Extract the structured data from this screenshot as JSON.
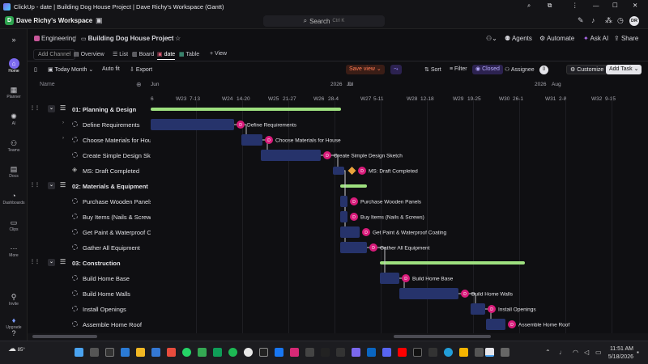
{
  "window": {
    "title": "ClickUp - date | Building Dog House Project | Dave Richy's Workspace (Gantt)"
  },
  "workspace": {
    "avatar_letter": "D",
    "name": "Dave Richy's Workspace",
    "avatar_color": "#2ea44f"
  },
  "search": {
    "placeholder": "Search",
    "shortcut": "Ctrl K"
  },
  "user": {
    "initials": "DR"
  },
  "leftnav": [
    {
      "label": "Home",
      "icon": "home-icon"
    },
    {
      "label": "Planner",
      "icon": "planner-icon"
    },
    {
      "label": "AI",
      "icon": "ai-icon"
    },
    {
      "label": "Teams",
      "icon": "teams-icon"
    },
    {
      "label": "Docs",
      "icon": "docs-icon"
    },
    {
      "label": "Dashboards",
      "icon": "dashboards-icon"
    },
    {
      "label": "Clips",
      "icon": "clips-icon"
    },
    {
      "label": "More",
      "icon": "more-icon"
    },
    {
      "label": "Invite",
      "icon": "invite-icon"
    },
    {
      "label": "Upgrade",
      "icon": "upgrade-icon"
    }
  ],
  "breadcrumb": {
    "space": "Engineering",
    "separator": "/",
    "list": "Building Dog House Project"
  },
  "header_actions": {
    "agents": "Agents",
    "automate": "Automate",
    "ask_ai": "Ask AI",
    "share": "Share"
  },
  "views": {
    "add_channel": "Add Channel",
    "tabs": [
      "Overview",
      "List",
      "Board",
      "date",
      "Table"
    ],
    "active": "date",
    "add_view": "+ View"
  },
  "controls": {
    "today": "Today",
    "scale": "Month",
    "autofit": "Auto fit",
    "export": "Export",
    "save_view": "Save view",
    "sort": "Sort",
    "filter": "Filter",
    "closed": "Closed",
    "assignee": "Assignee",
    "assignee_count": "0",
    "customize": "Customize",
    "add_task": "Add Task"
  },
  "grid": {
    "column_name": "Name"
  },
  "rows": [
    {
      "name": "01: Planning & Design",
      "type": "group"
    },
    {
      "name": "Define Requirements",
      "type": "task",
      "caret": true
    },
    {
      "name": "Choose Materials for House",
      "type": "task",
      "caret": true
    },
    {
      "name": "Create Simple Design Sketch",
      "type": "task"
    },
    {
      "name": "MS: Draft Completed",
      "type": "milestone"
    },
    {
      "name": "02: Materials & Equipment",
      "type": "group"
    },
    {
      "name": "Purchase Wooden Panels",
      "type": "task"
    },
    {
      "name": "Buy Items (Nails & Screws)",
      "type": "task"
    },
    {
      "name": "Get Paint & Waterproof Coating",
      "type": "task"
    },
    {
      "name": "Gather All Equipment",
      "type": "task"
    },
    {
      "name": "03: Construction",
      "type": "group"
    },
    {
      "name": "Build Home Base",
      "type": "task"
    },
    {
      "name": "Build Home Walls",
      "type": "task"
    },
    {
      "name": "Install Openings",
      "type": "task"
    },
    {
      "name": "Assemble Home Roof",
      "type": "task"
    }
  ],
  "timeline": {
    "months": [
      {
        "label": "Jun"
      },
      {
        "label": "2026"
      },
      {
        "label": "Jul"
      },
      {
        "label": "2026"
      },
      {
        "label": "Aug"
      }
    ],
    "weeks": [
      {
        "label": "6"
      },
      {
        "label": "W23"
      },
      {
        "label": "7-13"
      },
      {
        "label": "W24"
      },
      {
        "label": "14-20"
      },
      {
        "label": "W25"
      },
      {
        "label": "21-27"
      },
      {
        "label": "W26"
      },
      {
        "label": "28-4"
      },
      {
        "label": "W27"
      },
      {
        "label": "5-11"
      },
      {
        "label": "W28"
      },
      {
        "label": "12-18"
      },
      {
        "label": "W29"
      },
      {
        "label": "19-25"
      },
      {
        "label": "W30"
      },
      {
        "label": "26-1"
      },
      {
        "label": "W31"
      },
      {
        "label": "2-8"
      },
      {
        "label": "W32"
      },
      {
        "label": "9-15"
      }
    ],
    "bar_labels": [
      "Define Requirements",
      "Choose Materials for House",
      "Create Simple Design Sketch",
      "MS: Draft Completed",
      "Purchase Wooden Panels",
      "Buy Items (Nails & Screws)",
      "Get Paint & Waterproof Coating",
      "Gather All Equipment",
      "Build Home Base",
      "Build Home Walls",
      "Install Openings",
      "Assemble Home Roof"
    ],
    "avatar_letter": "D",
    "colors": {
      "task_bar": "#26336b",
      "group_bar": "#9ee07f",
      "milestone": "#e8a33c",
      "avatar": "#d81b7a"
    }
  },
  "taskbar": {
    "temperature": "85°",
    "time": "11:51 AM",
    "date": "5/18/2026"
  }
}
